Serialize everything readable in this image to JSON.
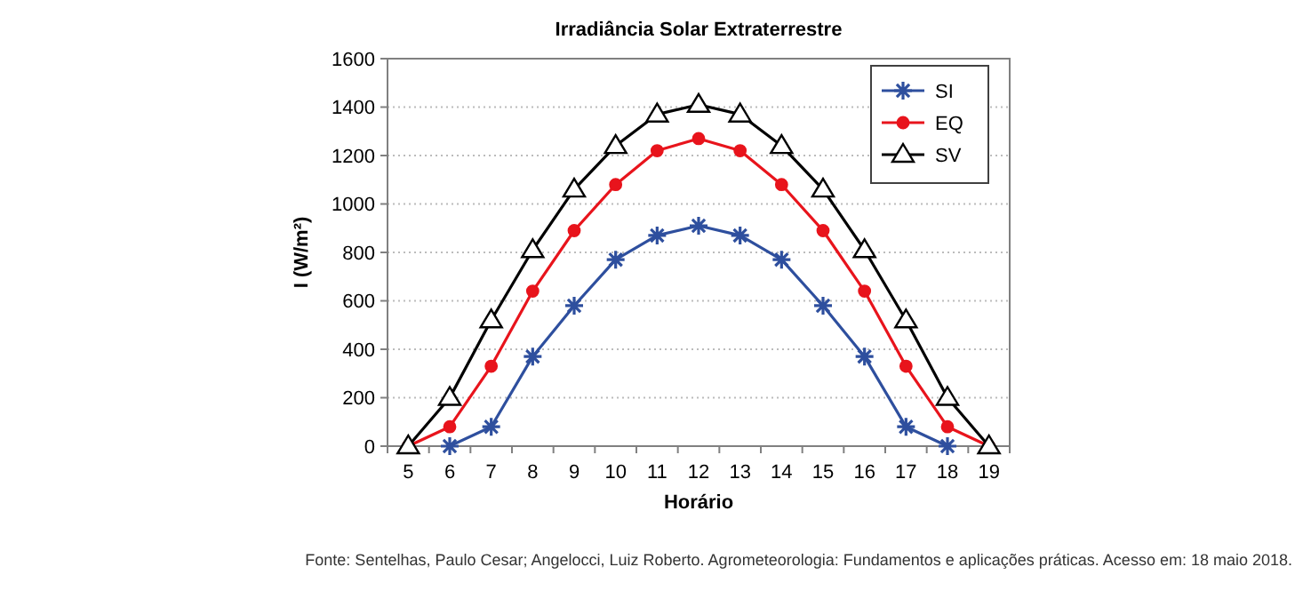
{
  "chart_data": {
    "type": "line",
    "title": "Irradiância Solar Extraterrestre",
    "xlabel": "Horário",
    "ylabel": "I (W/m²)",
    "categories": [
      "5",
      "6",
      "7",
      "8",
      "9",
      "10",
      "11",
      "12",
      "13",
      "14",
      "15",
      "16",
      "17",
      "18",
      "19"
    ],
    "series": [
      {
        "name": "SI",
        "color": "#2e4f9e",
        "marker": "cross",
        "values": [
          null,
          0,
          80,
          370,
          580,
          770,
          870,
          910,
          870,
          770,
          580,
          370,
          80,
          0,
          null
        ]
      },
      {
        "name": "EQ",
        "color": "#e8141c",
        "marker": "circle",
        "values": [
          0,
          80,
          330,
          640,
          890,
          1080,
          1220,
          1270,
          1220,
          1080,
          890,
          640,
          330,
          80,
          0
        ]
      },
      {
        "name": "SV",
        "color": "#000000",
        "marker": "triangle",
        "values": [
          0,
          200,
          520,
          810,
          1060,
          1240,
          1370,
          1410,
          1370,
          1240,
          1060,
          810,
          520,
          200,
          0
        ]
      }
    ],
    "ylim": [
      0,
      1600
    ],
    "yticks": [
      0,
      200,
      400,
      600,
      800,
      1000,
      1200,
      1400,
      1600
    ],
    "grid": "y",
    "legend": "top right",
    "line_style": "solid",
    "annotations": [
      "Fonte: Sentelhas, Paulo Cesar; Angelocci, Luiz Roberto. Agrometeorologia: Fundamentos e aplicações práticas. Acesso em: 18 maio 2018."
    ]
  }
}
